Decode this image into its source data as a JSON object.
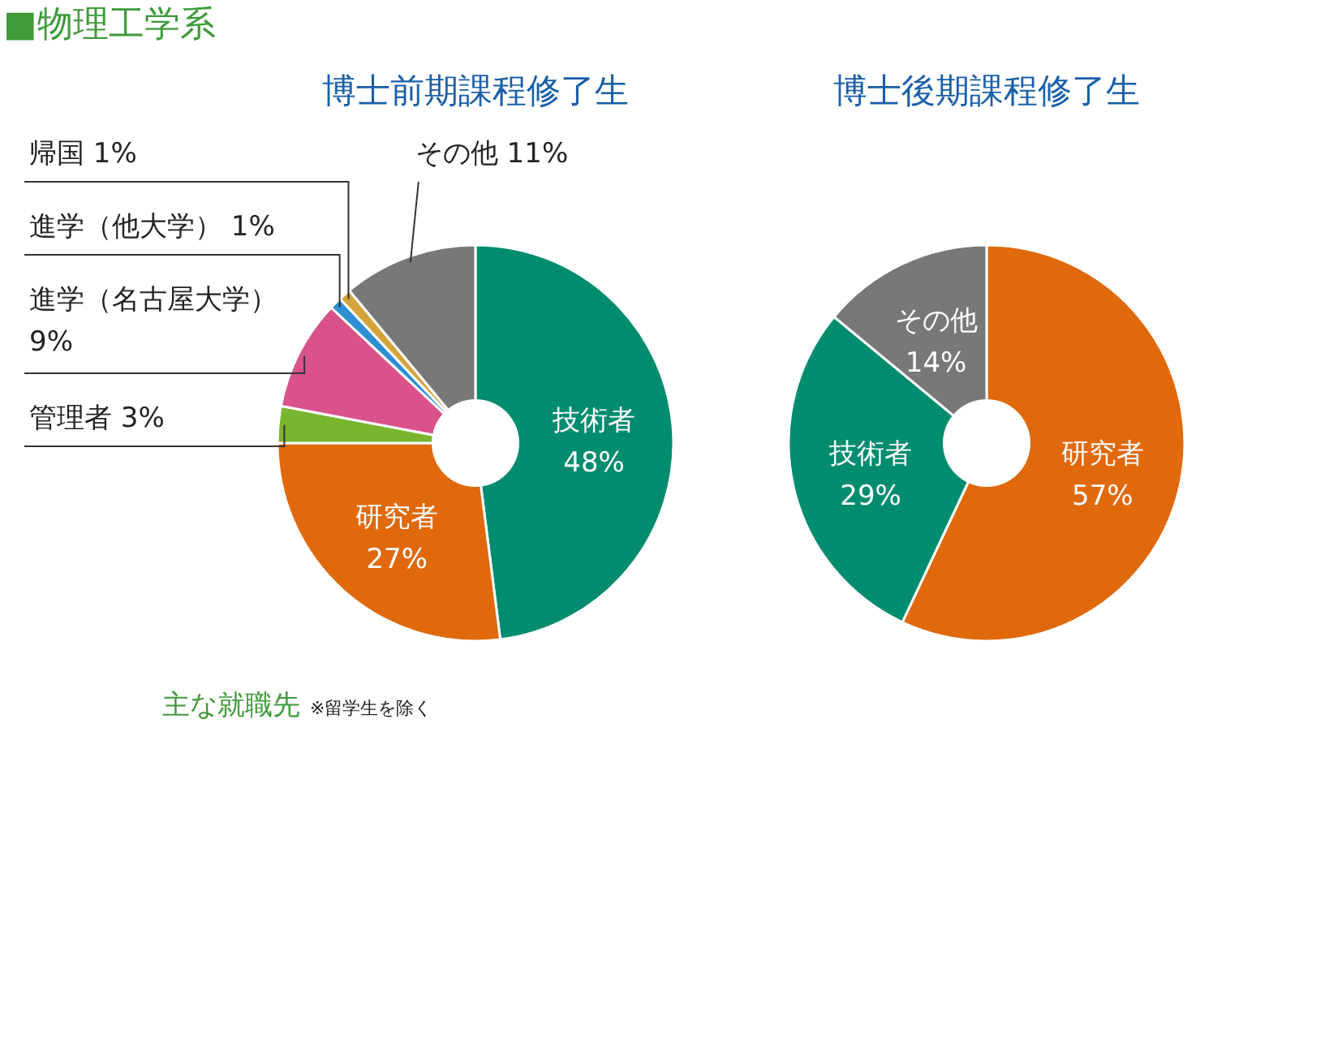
{
  "chart_data": [
    {
      "type": "donut",
      "title": "博士前期課程修了生",
      "categories": [
        "技術者",
        "研究者",
        "管理者",
        "進学（名古屋大学）",
        "進学（他大学）",
        "帰国",
        "その他"
      ],
      "values": [
        48,
        27,
        3,
        9,
        1,
        1,
        11
      ],
      "value_labels": [
        "48%",
        "27%",
        "3%",
        "9%",
        "1%",
        "1%",
        "11%"
      ],
      "colors": [
        "#008c6e",
        "#e0690c",
        "#7ab52e",
        "#d9528a",
        "#2e8fd4",
        "#d6a33a",
        "#787878"
      ],
      "annotations": [
        "■物理工学系",
        "主な就職先",
        "※留学生を除く"
      ]
    },
    {
      "type": "donut",
      "title": "博士後期課程修了生",
      "categories": [
        "研究者",
        "技術者",
        "その他"
      ],
      "values": [
        57,
        29,
        14
      ],
      "value_labels": [
        "57%",
        "29%",
        "14%"
      ],
      "colors": [
        "#e0690c",
        "#008c6e",
        "#787878"
      ]
    }
  ]
}
